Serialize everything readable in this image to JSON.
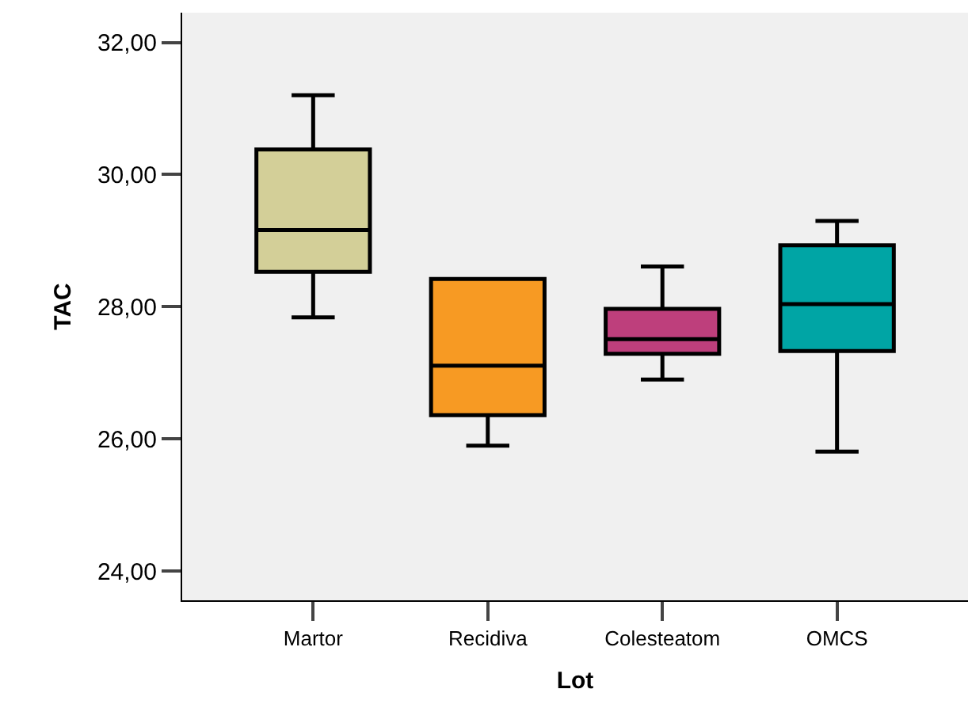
{
  "chart_data": {
    "type": "box",
    "xlabel": "Lot",
    "ylabel": "TAC",
    "categories": [
      "Martor",
      "Recidiva",
      "Colesteatom",
      "OMCS"
    ],
    "colors": [
      "#d3cf98",
      "#f79a23",
      "#be3f7c",
      "#00a5a5"
    ],
    "boxes": [
      {
        "low": 27.84,
        "q1": 28.53,
        "median": 29.16,
        "q3": 30.38,
        "high": 31.2
      },
      {
        "low": 25.9,
        "q1": 26.36,
        "median": 27.11,
        "q3": 28.42,
        "high": 28.42
      },
      {
        "low": 26.9,
        "q1": 27.29,
        "median": 27.51,
        "q3": 27.97,
        "high": 28.61
      },
      {
        "low": 25.81,
        "q1": 27.33,
        "median": 28.04,
        "q3": 28.93,
        "high": 29.3
      }
    ],
    "ylim": [
      23.56,
      32.45
    ],
    "yticks": [
      {
        "value": 24,
        "label": "24,00"
      },
      {
        "value": 26,
        "label": "26,00"
      },
      {
        "value": 28,
        "label": "28,00"
      },
      {
        "value": 30,
        "label": "30,00"
      },
      {
        "value": 32,
        "label": "32,00"
      }
    ],
    "grid": false,
    "legend": false
  }
}
